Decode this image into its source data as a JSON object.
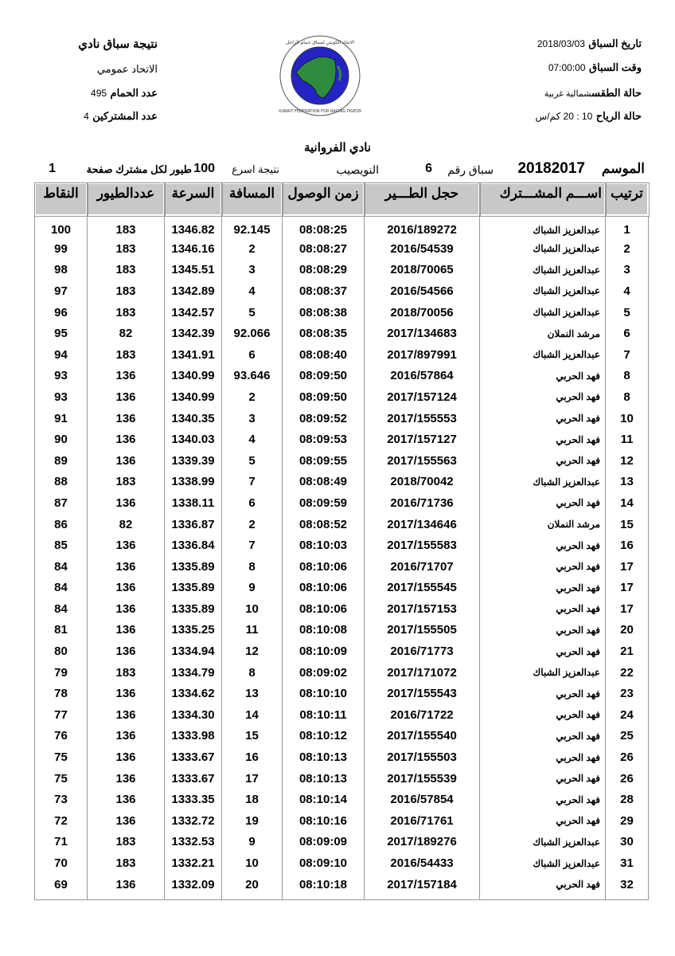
{
  "header_left": {
    "title": "نتيجة سباق نادي",
    "federation_label": "الاتحاد عمومي",
    "pigeons_label": "عدد الحمام",
    "pigeons_value": "495",
    "participants_label": "عدد المشتركين",
    "participants_value": "4"
  },
  "header_right": {
    "date_label": "تاريخ السباق",
    "date_value": "2018/03/03",
    "time_label": "وقت السباق",
    "time_value": "07:00:00",
    "weather_label": "حالة الطقس",
    "weather_value": "شمالية غربية",
    "wind_label": "حالة الرياح",
    "wind_value": "10 : 20 كم/س"
  },
  "logo": {
    "text": "الاتحاد الكويتي لسباق حمام الزاجل",
    "text_en": "KUWAIT FEDERATION FOR RACING PIGEON",
    "colors": {
      "ring": "#2020c0",
      "land": "#2e8b3e"
    }
  },
  "club_title": "نادي الفروانية",
  "info_bar": {
    "season_label": "الموسم",
    "season_value": "20182017",
    "race_no_label": "سباق رقم",
    "race_no_value": "6",
    "location": "النويصيب",
    "fastest_label": "نتيجة اسرع",
    "fastest_value": "100",
    "per_participant_label": "طيور لكل مشترك صفحة",
    "page_value": "1"
  },
  "table": {
    "columns": [
      "ترتيب",
      "اســـم المشـــترك",
      "حجل الطـــير",
      "زمن الوصول",
      "المسافة",
      "السرعة",
      "عددالطيور",
      "النقاط"
    ],
    "rows": [
      [
        "1",
        "عبدالعزيز الشباك",
        "2016/189272",
        "08:08:25",
        "92.145",
        "1346.82",
        "183",
        "100"
      ],
      [
        "2",
        "عبدالعزيز الشباك",
        "2016/54539",
        "08:08:27",
        "2",
        "1346.16",
        "183",
        "99"
      ],
      [
        "3",
        "عبدالعزيز الشباك",
        "2018/70065",
        "08:08:29",
        "3",
        "1345.51",
        "183",
        "98"
      ],
      [
        "4",
        "عبدالعزيز الشباك",
        "2016/54566",
        "08:08:37",
        "4",
        "1342.89",
        "183",
        "97"
      ],
      [
        "5",
        "عبدالعزيز الشباك",
        "2018/70056",
        "08:08:38",
        "5",
        "1342.57",
        "183",
        "96"
      ],
      [
        "6",
        "مرشد النملان",
        "2017/134683",
        "08:08:35",
        "92.066",
        "1342.39",
        "82",
        "95"
      ],
      [
        "7",
        "عبدالعزيز الشباك",
        "2017/897991",
        "08:08:40",
        "6",
        "1341.91",
        "183",
        "94"
      ],
      [
        "8",
        "فهد الحربي",
        "2016/57864",
        "08:09:50",
        "93.646",
        "1340.99",
        "136",
        "93"
      ],
      [
        "8",
        "فهد الحربي",
        "2017/157124",
        "08:09:50",
        "2",
        "1340.99",
        "136",
        "93"
      ],
      [
        "10",
        "فهد الحربي",
        "2017/155553",
        "08:09:52",
        "3",
        "1340.35",
        "136",
        "91"
      ],
      [
        "11",
        "فهد الحربي",
        "2017/157127",
        "08:09:53",
        "4",
        "1340.03",
        "136",
        "90"
      ],
      [
        "12",
        "فهد الحربي",
        "2017/155563",
        "08:09:55",
        "5",
        "1339.39",
        "136",
        "89"
      ],
      [
        "13",
        "عبدالعزيز الشباك",
        "2018/70042",
        "08:08:49",
        "7",
        "1338.99",
        "183",
        "88"
      ],
      [
        "14",
        "فهد الحربي",
        "2016/71736",
        "08:09:59",
        "6",
        "1338.11",
        "136",
        "87"
      ],
      [
        "15",
        "مرشد النملان",
        "2017/134646",
        "08:08:52",
        "2",
        "1336.87",
        "82",
        "86"
      ],
      [
        "16",
        "فهد الحربي",
        "2017/155583",
        "08:10:03",
        "7",
        "1336.84",
        "136",
        "85"
      ],
      [
        "17",
        "فهد الحربي",
        "2016/71707",
        "08:10:06",
        "8",
        "1335.89",
        "136",
        "84"
      ],
      [
        "17",
        "فهد الحربي",
        "2017/155545",
        "08:10:06",
        "9",
        "1335.89",
        "136",
        "84"
      ],
      [
        "17",
        "فهد الحربي",
        "2017/157153",
        "08:10:06",
        "10",
        "1335.89",
        "136",
        "84"
      ],
      [
        "20",
        "فهد الحربي",
        "2017/155505",
        "08:10:08",
        "11",
        "1335.25",
        "136",
        "81"
      ],
      [
        "21",
        "فهد الحربي",
        "2016/71773",
        "08:10:09",
        "12",
        "1334.94",
        "136",
        "80"
      ],
      [
        "22",
        "عبدالعزيز الشباك",
        "2017/171072",
        "08:09:02",
        "8",
        "1334.79",
        "183",
        "79"
      ],
      [
        "23",
        "فهد الحربي",
        "2017/155543",
        "08:10:10",
        "13",
        "1334.62",
        "136",
        "78"
      ],
      [
        "24",
        "فهد الحربي",
        "2016/71722",
        "08:10:11",
        "14",
        "1334.30",
        "136",
        "77"
      ],
      [
        "25",
        "فهد الحربي",
        "2017/155540",
        "08:10:12",
        "15",
        "1333.98",
        "136",
        "76"
      ],
      [
        "26",
        "فهد الحربي",
        "2017/155503",
        "08:10:13",
        "16",
        "1333.67",
        "136",
        "75"
      ],
      [
        "26",
        "فهد الحربي",
        "2017/155539",
        "08:10:13",
        "17",
        "1333.67",
        "136",
        "75"
      ],
      [
        "28",
        "فهد الحربي",
        "2016/57854",
        "08:10:14",
        "18",
        "1333.35",
        "136",
        "73"
      ],
      [
        "29",
        "فهد الحربي",
        "2016/71761",
        "08:10:16",
        "19",
        "1332.72",
        "136",
        "72"
      ],
      [
        "30",
        "عبدالعزيز الشباك",
        "2017/189276",
        "08:09:09",
        "9",
        "1332.53",
        "183",
        "71"
      ],
      [
        "31",
        "عبدالعزيز الشباك",
        "2016/54433",
        "08:09:10",
        "10",
        "1332.21",
        "183",
        "70"
      ],
      [
        "32",
        "فهد الحربي",
        "2017/157184",
        "08:10:18",
        "20",
        "1332.09",
        "136",
        "69"
      ]
    ]
  }
}
